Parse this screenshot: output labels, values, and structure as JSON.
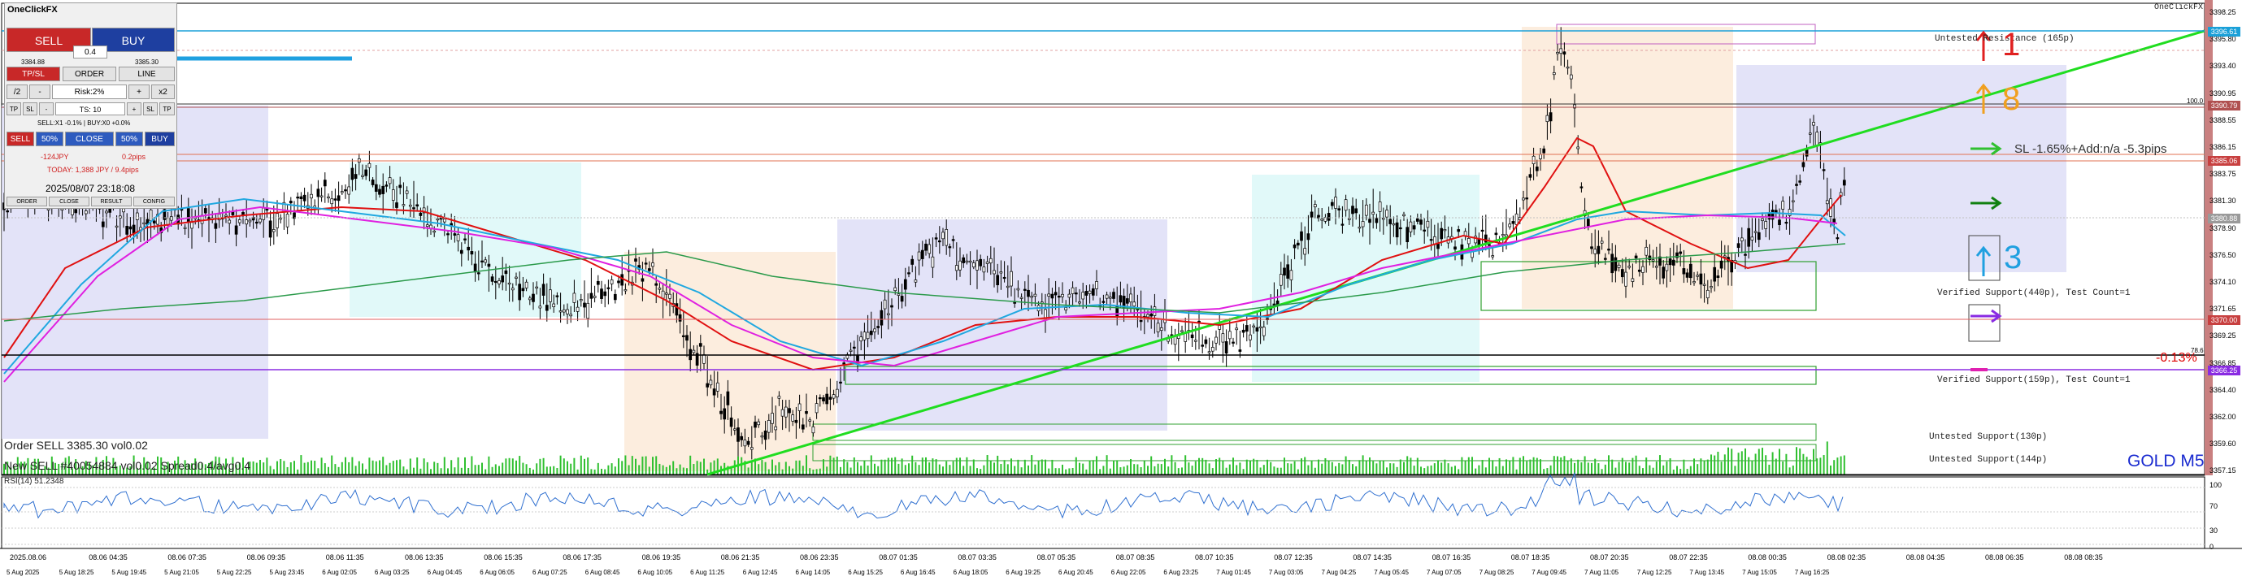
{
  "panel": {
    "title": "OneClickFX",
    "sell_label": "SELL",
    "buy_label": "BUY",
    "bid": "3384.88",
    "lot": "0.4",
    "ask": "3385.30",
    "tabs": [
      "TP/SL",
      "ORDER",
      "LINE"
    ],
    "risk_row": [
      "/2",
      "-",
      "Risk:2%",
      "+",
      "x2"
    ],
    "ts_row": [
      "TP",
      "SL",
      "-",
      "TS: 10",
      "+",
      "SL",
      "TP"
    ],
    "position_info": "SELL:X1 -0.1% | BUY:X0 +0.0%",
    "close_row": [
      "SELL",
      "50%",
      "CLOSE",
      "50%",
      "BUY"
    ],
    "pl_left": "-124JPY",
    "pl_right": "0.2pips",
    "today": "TODAY: 1,388 JPY / 9.4pips",
    "datetime": "2025/08/07  23:18:08",
    "bottom_tabs": [
      "ORDER",
      "CLOSE",
      "RESULT",
      "CONFIG"
    ]
  },
  "chart": {
    "broker_label": "GOLD M5",
    "top_right_label": "OneClickFX",
    "order_text": "Order SELL 3385.30 vol0.02",
    "info_text": "New SELL #40054884 vol0.02 Spread0.4/avg0.4",
    "sl_label": "SL -1.65%+Add:n/a -5.3pips",
    "pct_label": "-0.13%",
    "arrow_up_1_value": "1",
    "arrow_up_8_value": "8",
    "arrow_up_3_value": "3",
    "percent_100": "100.0",
    "percent_78": "78.6",
    "zones": {
      "resistance": "Untested Resistance (165p)",
      "support_440": "Verified Support(440p), Test Count=1",
      "support_159": "Verified Support(159p), Test Count=1",
      "support_130": "Untested Support(130p)",
      "support_144": "Untested Support(144p)"
    },
    "price_ticks": [
      "3398.25",
      "3395.80",
      "3393.40",
      "3390.95",
      "3388.55",
      "3386.15",
      "3383.75",
      "3381.30",
      "3378.90",
      "3376.50",
      "3374.10",
      "3371.65",
      "3369.25",
      "3366.85",
      "3364.40",
      "3362.00",
      "3359.60",
      "3357.15"
    ],
    "price_badges": [
      {
        "text": "3396.61",
        "color": "#1aa0d8"
      },
      {
        "text": "3390.79",
        "color": "#b05050"
      },
      {
        "text": "3385.06",
        "color": "#c84040"
      },
      {
        "text": "3380.88",
        "color": "#9a9a9a"
      },
      {
        "text": "3370.00",
        "color": "#c84040"
      },
      {
        "text": "3366.25",
        "color": "#8a2be2"
      }
    ],
    "rsi_label": "RSI(14) 51.2348",
    "rsi_ticks": [
      "100",
      "70",
      "30",
      "0"
    ],
    "time_ticks": [
      "2025.08.06",
      "08.06 04:35",
      "08.06 07:35",
      "08.06 09:35",
      "08.06 11:35",
      "08.06 13:35",
      "08.06 15:35",
      "08.06 17:35",
      "08.06 19:35",
      "08.06 21:35",
      "08.06 23:35",
      "08.07 01:35",
      "08.07 03:35",
      "08.07 05:35",
      "08.07 08:35",
      "08.07 10:35",
      "08.07 12:35",
      "08.07 14:35",
      "08.07 16:35",
      "08.07 18:35",
      "08.07 20:35",
      "08.07 22:35",
      "08.08 00:35",
      "08.08 02:35",
      "08.08 04:35",
      "08.08 06:35",
      "08.08 08:35"
    ],
    "date_ticks": [
      "5 Aug 2025",
      "5 Aug 18:25",
      "5 Aug 19:45",
      "5 Aug 21:05",
      "5 Aug 22:25",
      "5 Aug 23:45",
      "6 Aug 02:05",
      "6 Aug 03:25",
      "6 Aug 04:45",
      "6 Aug 06:05",
      "6 Aug 07:25",
      "6 Aug 08:45",
      "6 Aug 10:05",
      "6 Aug 11:25",
      "6 Aug 12:45",
      "6 Aug 14:05",
      "6 Aug 15:25",
      "6 Aug 16:45",
      "6 Aug 18:05",
      "6 Aug 19:25",
      "6 Aug 20:45",
      "6 Aug 22:05",
      "6 Aug 23:25",
      "7 Aug 01:45",
      "7 Aug 03:05",
      "7 Aug 04:25",
      "7 Aug 05:45",
      "7 Aug 07:05",
      "7 Aug 08:25",
      "7 Aug 09:45",
      "7 Aug 11:05",
      "7 Aug 12:25",
      "7 Aug 13:45",
      "7 Aug 15:05",
      "7 Aug 16:25"
    ],
    "colors": {
      "candle": "#000000",
      "ma_red": "#e01010",
      "ma_blue": "#20a8e0",
      "ma_magenta": "#e020e0",
      "ma_green": "#2a9a4a",
      "trend": "#20dd20",
      "rsi": "#3070d0"
    }
  }
}
